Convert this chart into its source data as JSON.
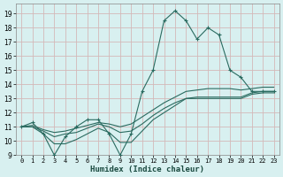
{
  "xlabel": "Humidex (Indice chaleur)",
  "bg_color": "#d8f0f0",
  "grid_color": "#c0d4d4",
  "line_color": "#2a6b60",
  "xlim": [
    -0.5,
    23.5
  ],
  "ylim": [
    9,
    19.7
  ],
  "xticks": [
    0,
    1,
    2,
    3,
    4,
    5,
    6,
    7,
    8,
    9,
    10,
    11,
    12,
    13,
    14,
    15,
    16,
    17,
    18,
    19,
    20,
    21,
    22,
    23
  ],
  "yticks": [
    9,
    10,
    11,
    12,
    13,
    14,
    15,
    16,
    17,
    18,
    19
  ],
  "series": [
    [
      11.0,
      11.3,
      10.5,
      9.0,
      10.3,
      11.0,
      11.5,
      11.5,
      10.5,
      9.0,
      10.5,
      13.5,
      15.0,
      18.5,
      19.2,
      18.5,
      17.2,
      18.0,
      17.5,
      15.0,
      14.5,
      13.5,
      13.5,
      13.5
    ],
    [
      11.0,
      11.1,
      10.8,
      10.6,
      10.7,
      10.9,
      11.1,
      11.3,
      11.2,
      11.0,
      11.2,
      11.7,
      12.2,
      12.7,
      13.1,
      13.5,
      13.6,
      13.7,
      13.7,
      13.7,
      13.6,
      13.7,
      13.8,
      13.8
    ],
    [
      11.0,
      11.0,
      10.7,
      10.3,
      10.5,
      10.6,
      10.9,
      11.2,
      11.0,
      10.6,
      10.7,
      11.2,
      11.8,
      12.3,
      12.7,
      13.0,
      13.1,
      13.1,
      13.1,
      13.1,
      13.1,
      13.4,
      13.5,
      13.5
    ],
    [
      11.0,
      11.0,
      10.5,
      9.8,
      9.8,
      10.1,
      10.5,
      10.9,
      10.6,
      9.9,
      9.9,
      10.7,
      11.5,
      12.0,
      12.5,
      13.0,
      13.0,
      13.0,
      13.0,
      13.0,
      13.0,
      13.3,
      13.4,
      13.4
    ]
  ]
}
